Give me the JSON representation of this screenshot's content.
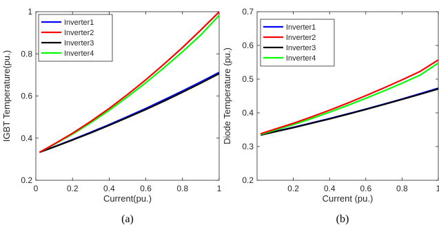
{
  "chart_data": [
    {
      "type": "line",
      "caption": "(a)",
      "xlabel": "Current(pu.)",
      "ylabel": "IGBT Temperature(pu.)",
      "xlim": [
        0,
        1
      ],
      "ylim": [
        0.2,
        1
      ],
      "xticks": [
        0,
        0.2,
        0.4,
        0.6,
        0.8,
        1
      ],
      "xtick_labels": [
        "0",
        "0.2",
        "0.4",
        "0.6",
        "0.8",
        "1"
      ],
      "yticks": [
        0.2,
        0.4,
        0.6,
        0.8,
        1
      ],
      "ytick_labels": [
        "0.2",
        "0.4",
        "0.6",
        "0.8",
        "1"
      ],
      "legend_position": "top-left",
      "grid": false,
      "x": [
        0.02,
        0.1,
        0.2,
        0.3,
        0.4,
        0.5,
        0.6,
        0.7,
        0.8,
        0.9,
        1.0
      ],
      "series": [
        {
          "name": "Inverter1",
          "color": "#0000ff",
          "values": [
            0.333,
            0.359,
            0.393,
            0.428,
            0.464,
            0.502,
            0.541,
            0.582,
            0.624,
            0.667,
            0.712
          ]
        },
        {
          "name": "Inverter2",
          "color": "#ff0000",
          "values": [
            0.333,
            0.372,
            0.423,
            0.48,
            0.541,
            0.607,
            0.677,
            0.752,
            0.83,
            0.913,
            0.999
          ]
        },
        {
          "name": "Inverter3",
          "color": "#000000",
          "values": [
            0.333,
            0.358,
            0.391,
            0.425,
            0.461,
            0.498,
            0.536,
            0.576,
            0.618,
            0.661,
            0.706
          ]
        },
        {
          "name": "Inverter4",
          "color": "#00ff00",
          "values": [
            0.333,
            0.37,
            0.419,
            0.473,
            0.532,
            0.596,
            0.663,
            0.735,
            0.81,
            0.89,
            0.983
          ]
        }
      ]
    },
    {
      "type": "line",
      "caption": "(b)",
      "xlabel": "Current (pu.)",
      "ylabel": "Diode Temperature (pu.)",
      "xlim": [
        0,
        1
      ],
      "ylim": [
        0.2,
        0.7
      ],
      "xticks": [
        0.2,
        0.4,
        0.6,
        0.8,
        1
      ],
      "xtick_labels": [
        "0.2",
        "0.4",
        "0.6",
        "0.8",
        "1"
      ],
      "yticks": [
        0.2,
        0.3,
        0.4,
        0.5,
        0.6,
        0.7
      ],
      "ytick_labels": [
        "0.2",
        "0.3",
        "0.4",
        "0.5",
        "0.6",
        "0.7"
      ],
      "legend_position": "top-left",
      "grid": false,
      "x": [
        0.02,
        0.1,
        0.2,
        0.3,
        0.4,
        0.5,
        0.6,
        0.7,
        0.8,
        0.9,
        1.0
      ],
      "series": [
        {
          "name": "Inverter1",
          "color": "#0000ff",
          "values": [
            0.335,
            0.345,
            0.357,
            0.37,
            0.383,
            0.397,
            0.411,
            0.426,
            0.441,
            0.457,
            0.473
          ]
        },
        {
          "name": "Inverter2",
          "color": "#ff0000",
          "values": [
            0.338,
            0.352,
            0.369,
            0.388,
            0.408,
            0.429,
            0.451,
            0.474,
            0.498,
            0.523,
            0.557
          ]
        },
        {
          "name": "Inverter3",
          "color": "#000000",
          "values": [
            0.334,
            0.344,
            0.356,
            0.369,
            0.382,
            0.396,
            0.41,
            0.425,
            0.44,
            0.455,
            0.471
          ]
        },
        {
          "name": "Inverter4",
          "color": "#00ff00",
          "values": [
            0.336,
            0.349,
            0.365,
            0.383,
            0.402,
            0.422,
            0.443,
            0.465,
            0.488,
            0.512,
            0.548
          ]
        }
      ]
    }
  ]
}
